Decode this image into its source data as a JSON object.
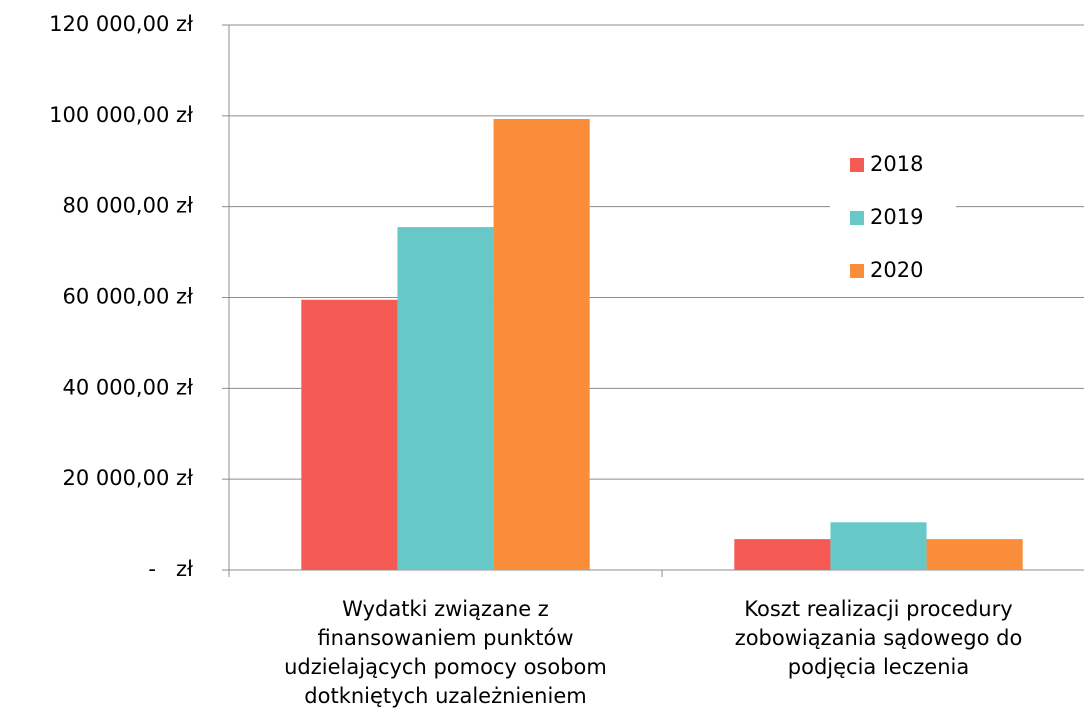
{
  "chart_data": {
    "type": "bar",
    "categories": [
      "Wydatki związane z finansowaniem punktów udzielających pomocy osobom dotkniętych uzależnieniem",
      "Koszt realizacji procedury zobowiązania sądowego do podjęcia leczenia"
    ],
    "series": [
      {
        "name": "2018",
        "color": "#f65a55",
        "values": [
          59500,
          6800
        ]
      },
      {
        "name": "2019",
        "color": "#67c8c8",
        "values": [
          75500,
          10500
        ]
      },
      {
        "name": "2020",
        "color": "#f98d39",
        "values": [
          99300,
          6800
        ]
      }
    ],
    "ylim": [
      0,
      120000
    ],
    "yticks": [
      {
        "value": 0,
        "label": "-   zł"
      },
      {
        "value": 20000,
        "label": "20 000,00 zł"
      },
      {
        "value": 40000,
        "label": "40 000,00 zł"
      },
      {
        "value": 60000,
        "label": "60 000,00 zł"
      },
      {
        "value": 80000,
        "label": "80 000,00 zł"
      },
      {
        "value": 100000,
        "label": "100 000,00 zł"
      },
      {
        "value": 120000,
        "label": "120 000,00 zł"
      }
    ],
    "grid": true,
    "legend": "right"
  }
}
